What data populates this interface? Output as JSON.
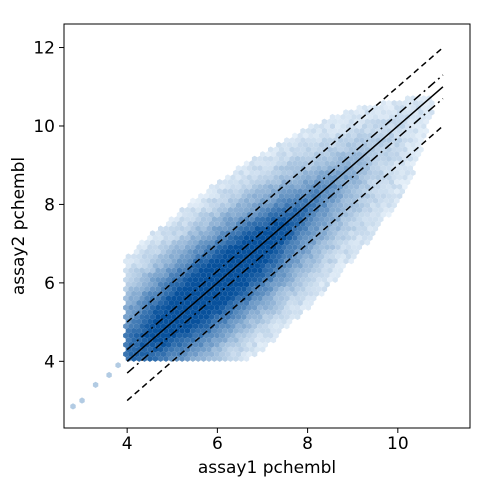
{
  "chart_data": {
    "type": "scatter",
    "style": "hexbin-density",
    "title": "",
    "xlabel": "assay1 pchembl",
    "ylabel": "assay2 pchembl",
    "xlim": [
      2.6,
      11.6
    ],
    "ylim": [
      2.3,
      12.6
    ],
    "x_ticks": [
      4,
      6,
      8,
      10
    ],
    "y_ticks": [
      4,
      6,
      8,
      10,
      12
    ],
    "grid": false,
    "density": {
      "color_light": "#eaf3fb",
      "color_dark": "#08519c",
      "range_x": [
        4,
        11
      ],
      "range_y": [
        4,
        11
      ],
      "peak": [
        5.8,
        6.0
      ],
      "sparse_points": [
        [
          2.8,
          2.85
        ],
        [
          3.0,
          3.0
        ],
        [
          3.3,
          3.4
        ],
        [
          3.6,
          3.65
        ],
        [
          3.8,
          3.9
        ]
      ]
    },
    "reference_lines": [
      {
        "name": "y = x",
        "style": "solid",
        "x": [
          4,
          11
        ],
        "y": [
          4,
          11
        ]
      },
      {
        "name": "y = x + 0.3",
        "style": "dashdot",
        "x": [
          4,
          11
        ],
        "y": [
          4.3,
          11.3
        ]
      },
      {
        "name": "y = x - 0.3",
        "style": "dashdot",
        "x": [
          4,
          11
        ],
        "y": [
          3.7,
          10.7
        ]
      },
      {
        "name": "y = x + 1",
        "style": "dashed",
        "x": [
          4,
          11
        ],
        "y": [
          5,
          12
        ]
      },
      {
        "name": "y = x - 1",
        "style": "dashed",
        "x": [
          4,
          11
        ],
        "y": [
          3,
          10
        ]
      }
    ]
  }
}
